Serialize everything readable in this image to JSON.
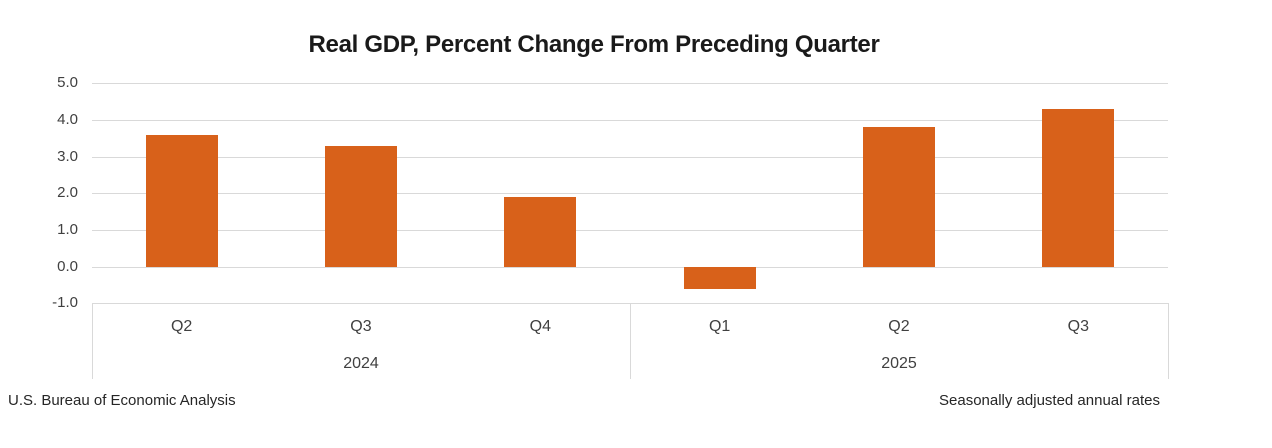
{
  "chart_data": {
    "type": "bar",
    "title": "Real GDP, Percent Change From Preceding Quarter",
    "categories": [
      "Q2",
      "Q3",
      "Q4",
      "Q1",
      "Q2",
      "Q3"
    ],
    "values": [
      3.6,
      3.3,
      1.9,
      -0.6,
      3.8,
      4.3
    ],
    "year_groups": [
      {
        "label": "2024",
        "start": 0,
        "count": 3
      },
      {
        "label": "2025",
        "start": 3,
        "count": 3
      }
    ],
    "yticks": [
      5.0,
      4.0,
      3.0,
      2.0,
      1.0,
      0.0,
      -1.0
    ],
    "ylim": [
      -1.0,
      5.0
    ],
    "grid": "horizontal",
    "legend": "none",
    "bar_color": "#d8611a",
    "gridline_color": "#d9d9d9",
    "axis_text_color": "#404040",
    "title_color": "#1a1a1a",
    "footer_left": "U.S. Bureau of Economic Analysis",
    "footer_right": "Seasonally adjusted annual rates"
  }
}
